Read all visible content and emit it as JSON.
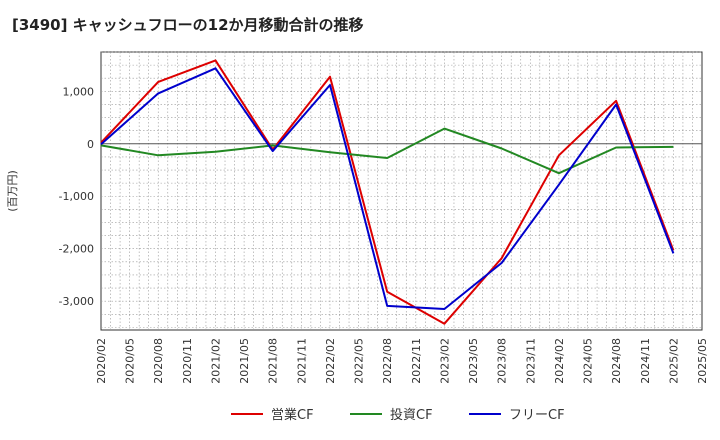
{
  "chart_data": {
    "type": "line",
    "title": "[3490]  キャッシュフローの12か月移動合計の推移",
    "xlabel": "",
    "ylabel": "(百万円)",
    "ylim": [
      -3550,
      1750
    ],
    "yticks": [
      1000,
      0,
      -1000,
      -2000,
      -3000
    ],
    "ytick_labels": [
      "1,000",
      "0",
      "-1,000",
      "-2,000",
      "-3,000"
    ],
    "xticks": [
      "2020/02",
      "2020/05",
      "2020/08",
      "2020/11",
      "2021/02",
      "2021/05",
      "2021/08",
      "2021/11",
      "2022/02",
      "2022/05",
      "2022/08",
      "2022/11",
      "2023/02",
      "2023/05",
      "2023/08",
      "2023/11",
      "2024/02",
      "2024/05",
      "2024/08",
      "2024/11",
      "2025/02",
      "2025/05"
    ],
    "x": [
      "2020/02",
      "2020/08",
      "2021/02",
      "2021/08",
      "2022/02",
      "2022/08",
      "2023/02",
      "2023/08",
      "2024/02",
      "2024/08",
      "2025/02"
    ],
    "series": [
      {
        "name": "営業CF",
        "color": "#dd0000",
        "values": [
          20,
          1180,
          1590,
          -110,
          1280,
          -2820,
          -3430,
          -2180,
          -220,
          820,
          -2030
        ]
      },
      {
        "name": "投資CF",
        "color": "#228822",
        "values": [
          -30,
          -220,
          -150,
          -30,
          -160,
          -270,
          290,
          -90,
          -560,
          -70,
          -60
        ]
      },
      {
        "name": "フリーCF",
        "color": "#0000cc",
        "values": [
          -10,
          960,
          1440,
          -140,
          1120,
          -3090,
          -3150,
          -2270,
          -780,
          750,
          -2090
        ]
      }
    ],
    "grid": true,
    "legend_position": "bottom"
  }
}
